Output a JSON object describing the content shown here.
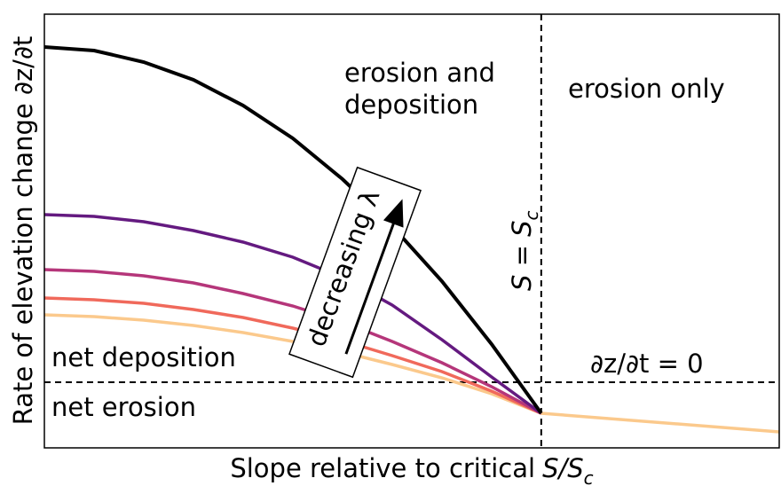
{
  "chart_data": {
    "type": "line",
    "xlabel": [
      "Slope relative to critical",
      "S/S",
      "c"
    ],
    "ylabel": "Rate of elevation change ∂z/∂t",
    "x": [
      0,
      0.1,
      0.2,
      0.3,
      0.4,
      0.5,
      0.6,
      0.7,
      0.8,
      0.9,
      1.0,
      1.479
    ],
    "xlim": [
      0,
      1.479
    ],
    "ylim": [
      -0.74,
      4.15
    ],
    "vlines": [
      1
    ],
    "hlines": [
      0
    ],
    "series": [
      {
        "color": "#fbc98c",
        "values": [
          0.76,
          0.74,
          0.7,
          0.64,
          0.56,
          0.46,
          0.34,
          0.2,
          0.05,
          -0.13,
          -0.35,
          -0.56
        ]
      },
      {
        "color": "#f0695b",
        "values": [
          0.95,
          0.93,
          0.89,
          0.82,
          0.73,
          0.61,
          0.47,
          0.3,
          0.12,
          -0.1,
          -0.35,
          null
        ]
      },
      {
        "color": "#b5367a",
        "values": [
          1.27,
          1.25,
          1.2,
          1.12,
          1.0,
          0.86,
          0.68,
          0.46,
          0.22,
          -0.05,
          -0.35,
          null
        ]
      },
      {
        "color": "#641a80",
        "values": [
          1.89,
          1.87,
          1.81,
          1.71,
          1.58,
          1.41,
          1.18,
          0.87,
          0.48,
          0.06,
          -0.35,
          null
        ]
      },
      {
        "color": "#000000",
        "values": [
          3.78,
          3.74,
          3.61,
          3.41,
          3.12,
          2.75,
          2.29,
          1.76,
          1.14,
          0.43,
          -0.35,
          null
        ]
      }
    ],
    "annotations": {
      "erosion_deposition": [
        "erosion and",
        "deposition"
      ],
      "erosion_only": "erosion only",
      "net_deposition": "net deposition",
      "net_erosion": "net erosion",
      "critical": [
        "S = S",
        "c"
      ],
      "zero": "∂z/∂t = 0",
      "arrow": "decreasing λ"
    }
  }
}
